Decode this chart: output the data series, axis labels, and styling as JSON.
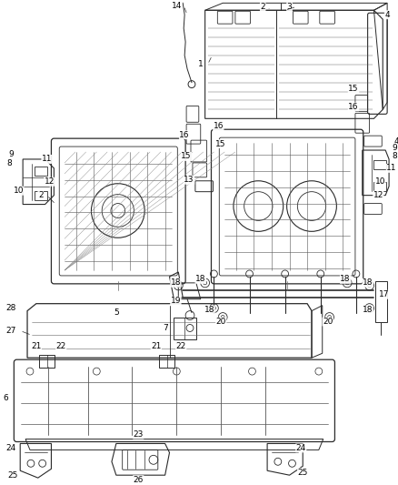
{
  "bg_color": "#ffffff",
  "line_color": "#2a2a2a",
  "label_fontsize": 6.5,
  "fig_w": 4.38,
  "fig_h": 5.33,
  "dpi": 100
}
